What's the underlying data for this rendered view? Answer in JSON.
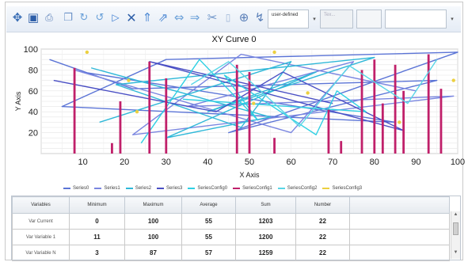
{
  "toolbar": {
    "icons": [
      "cursor-arrows-icon",
      "save-icon",
      "print-icon",
      "copy-icon",
      "refresh-icon",
      "undo-icon",
      "play-icon",
      "close-icon",
      "arrow-up-icon",
      "arrow-up-right-icon",
      "move-left-icon",
      "move-right-icon",
      "scissors-icon",
      "page-icon",
      "zoom-icon",
      "curve-icon"
    ],
    "select1": "user-defined",
    "select2": "Tex...",
    "select3": ""
  },
  "chart_data": {
    "type": "line",
    "title": "XY Curve 0",
    "xlabel": "X Axis",
    "ylabel": "Y Axis",
    "xlim": [
      0,
      100
    ],
    "ylim": [
      0,
      100
    ],
    "xticks": [
      "10",
      "20",
      "30",
      "40",
      "50",
      "60",
      "70",
      "80",
      "90",
      "100"
    ],
    "yticks": [
      "100",
      "80",
      "60",
      "40",
      "20"
    ],
    "series": [
      {
        "name": "Series0",
        "color": "#5b74d6",
        "kind": "line",
        "x": [
          2,
          22,
          95,
          45,
          100,
          30,
          5,
          85,
          10
        ],
        "y": [
          90,
          62,
          70,
          20,
          97,
          90,
          45,
          30,
          78
        ]
      },
      {
        "name": "Series1",
        "color": "#7a86e0",
        "kind": "line",
        "x": [
          8,
          60,
          75,
          35,
          99,
          22,
          48,
          90
        ],
        "y": [
          80,
          20,
          88,
          45,
          55,
          18,
          95,
          60
        ]
      },
      {
        "name": "Series2",
        "color": "#2fb8d8",
        "kind": "line",
        "x": [
          12,
          55,
          30,
          66,
          40,
          80,
          18,
          48,
          60,
          14
        ],
        "y": [
          82,
          35,
          15,
          78,
          40,
          92,
          66,
          25,
          88,
          30
        ]
      },
      {
        "name": "Series3",
        "color": "#4a4fc4",
        "kind": "line",
        "x": [
          3,
          42,
          58,
          87,
          26,
          70
        ],
        "y": [
          70,
          40,
          78,
          22,
          88,
          48
        ]
      },
      {
        "name": "SeriesConfig0",
        "color": "#2fd0e3",
        "kind": "line",
        "x": [
          24,
          38,
          52,
          44,
          66,
          71,
          78,
          34
        ],
        "y": [
          10,
          90,
          32,
          75,
          18,
          60,
          40,
          52
        ]
      },
      {
        "name": "SeriesConfig1",
        "color": "#c0206a",
        "kind": "bar",
        "x": [
          8,
          17,
          19,
          26,
          30,
          47,
          50,
          56,
          69,
          72,
          77,
          80,
          82,
          85,
          87,
          93,
          96
        ],
        "y": [
          82,
          10,
          50,
          88,
          72,
          85,
          78,
          15,
          42,
          12,
          80,
          90,
          48,
          85,
          60,
          95,
          62
        ]
      },
      {
        "name": "SeriesConfig2",
        "color": "#59d6e6",
        "kind": "line",
        "x": [
          36,
          45,
          62,
          74,
          88,
          95
        ],
        "y": [
          66,
          88,
          26,
          84,
          48,
          90
        ]
      },
      {
        "name": "SeriesConfig3",
        "color": "#ecd040",
        "kind": "scatter",
        "x": [
          11,
          21,
          23,
          51,
          56,
          64,
          86,
          99
        ],
        "y": [
          97,
          70,
          40,
          48,
          97,
          58,
          30,
          70
        ]
      }
    ]
  },
  "table": {
    "headers": [
      "Variables",
      "Minimum",
      "Maximum",
      "Average",
      "Sum",
      "Number"
    ],
    "rows": [
      {
        "label": "Var Current",
        "min": "0",
        "max": "100",
        "avg": "55",
        "sum": "1203",
        "num": "22"
      },
      {
        "label": "Var Variable 1",
        "min": "11",
        "max": "100",
        "avg": "55",
        "sum": "1200",
        "num": "22"
      },
      {
        "label": "Var Variable N",
        "min": "3",
        "max": "87",
        "avg": "57",
        "sum": "1259",
        "num": "22"
      }
    ]
  }
}
